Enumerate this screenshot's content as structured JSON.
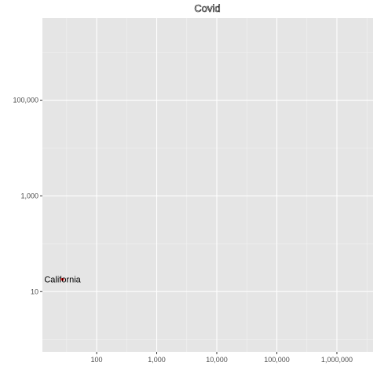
{
  "chart_data": {
    "type": "scatter",
    "title": "Covid",
    "xlabel": "",
    "ylabel": "",
    "x_scale": "log10",
    "y_scale": "log10",
    "x_range": [
      12.5,
      4000000
    ],
    "y_range": [
      0.55,
      5200000
    ],
    "x_ticks": [
      {
        "value": 100,
        "label": "100"
      },
      {
        "value": 1000,
        "label": "1,000"
      },
      {
        "value": 10000,
        "label": "10,000"
      },
      {
        "value": 100000,
        "label": "100,000"
      },
      {
        "value": 1000000,
        "label": "1,000,000"
      }
    ],
    "y_ticks": [
      {
        "value": 10,
        "label": "10"
      },
      {
        "value": 1000,
        "label": "1,000"
      },
      {
        "value": 100000,
        "label": "100,000"
      }
    ],
    "grid": true,
    "legend": "none",
    "points": [
      {
        "label": "California",
        "x": 27,
        "y": 18,
        "color": "#ff0000"
      }
    ],
    "colors": {
      "panel": "#e5e5e5",
      "grid_major": "#ffffff",
      "grid_minor": "#f2f2f2",
      "tick": "#333333",
      "point": "#ff0000"
    }
  }
}
